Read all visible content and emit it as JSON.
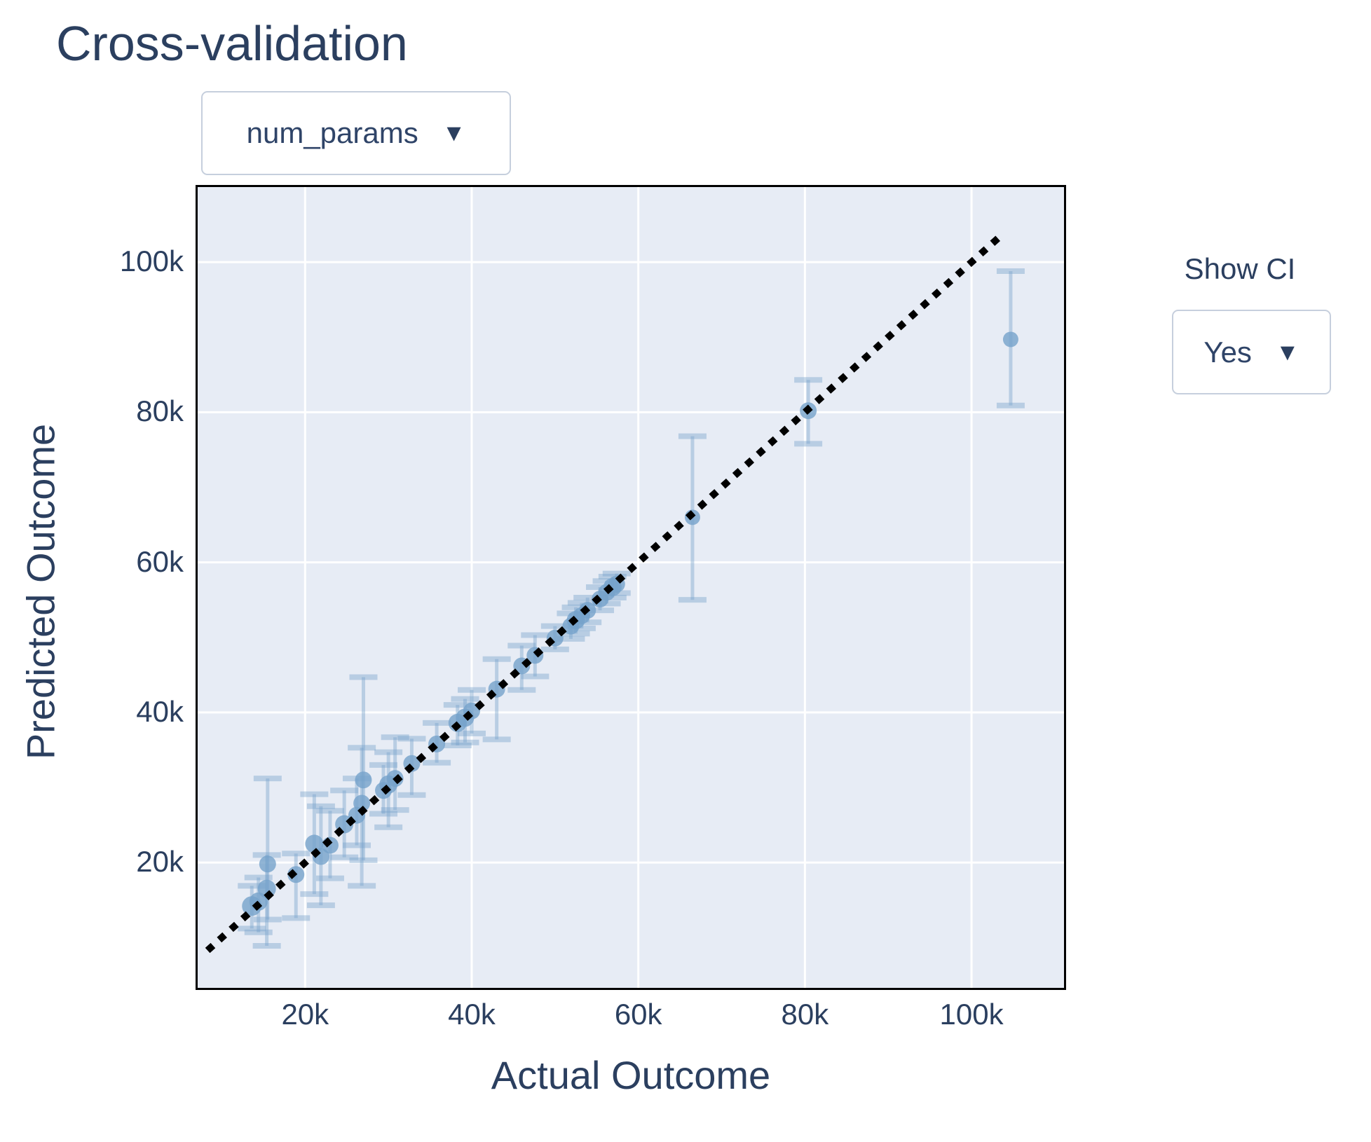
{
  "title": "Cross-validation",
  "controls": {
    "param_dropdown": {
      "value": "num_params",
      "caret": "▼"
    },
    "show_ci": {
      "label": "Show CI",
      "value": "Yes",
      "caret": "▼"
    }
  },
  "chart_data": {
    "type": "scatter",
    "title": "Cross-validation",
    "xlabel": "Actual Outcome",
    "ylabel": "Predicted Outcome",
    "xlim": [
      7100,
      111100
    ],
    "ylim": [
      3300,
      110000
    ],
    "grid": true,
    "xticks": {
      "values": [
        20000,
        40000,
        60000,
        80000,
        100000
      ],
      "labels": [
        "20k",
        "40k",
        "60k",
        "80k",
        "100k"
      ]
    },
    "yticks": {
      "values": [
        20000,
        40000,
        60000,
        80000,
        100000
      ],
      "labels": [
        "20k",
        "40k",
        "60k",
        "80k",
        "100k"
      ]
    },
    "identity_line": {
      "style": "dotted",
      "color": "#000000",
      "from": 8600,
      "to": 104200
    },
    "colors": {
      "plot_bg": "#e7ecf5",
      "grid": "#ffffff",
      "marker": "#76a3cb",
      "error_bar": "#76a3cb",
      "text": "#2b3f5f",
      "axis_border": "#000000"
    },
    "points": [
      {
        "x": 13600,
        "y": 14200,
        "lo": 11200,
        "hi": 16900,
        "r": 14
      },
      {
        "x": 14400,
        "y": 14800,
        "lo": 10700,
        "hi": 18000,
        "r": 13
      },
      {
        "x": 15400,
        "y": 16500,
        "lo": 8900,
        "hi": 21000,
        "r": 13
      },
      {
        "x": 15500,
        "y": 19800,
        "lo": 12400,
        "hi": 31200,
        "r": 12
      },
      {
        "x": 18900,
        "y": 18400,
        "lo": 12600,
        "hi": 21200,
        "r": 12
      },
      {
        "x": 21100,
        "y": 22500,
        "lo": 15800,
        "hi": 29100,
        "r": 13
      },
      {
        "x": 21900,
        "y": 20800,
        "lo": 14300,
        "hi": 27500,
        "r": 12
      },
      {
        "x": 23000,
        "y": 22300,
        "lo": 17900,
        "hi": 26900,
        "r": 12
      },
      {
        "x": 24700,
        "y": 25100,
        "lo": 20700,
        "hi": 29600,
        "r": 13
      },
      {
        "x": 26200,
        "y": 26300,
        "lo": 22300,
        "hi": 31200,
        "r": 12
      },
      {
        "x": 26800,
        "y": 27900,
        "lo": 16900,
        "hi": 35300,
        "r": 12
      },
      {
        "x": 27000,
        "y": 31000,
        "lo": 20300,
        "hi": 44700,
        "r": 12
      },
      {
        "x": 29400,
        "y": 29600,
        "lo": 26500,
        "hi": 33000,
        "r": 12
      },
      {
        "x": 30000,
        "y": 30400,
        "lo": 24700,
        "hi": 34700,
        "r": 13
      },
      {
        "x": 30800,
        "y": 31200,
        "lo": 27000,
        "hi": 36700,
        "r": 12
      },
      {
        "x": 32800,
        "y": 33200,
        "lo": 29000,
        "hi": 36500,
        "r": 12
      },
      {
        "x": 35800,
        "y": 35800,
        "lo": 33300,
        "hi": 38600,
        "r": 12
      },
      {
        "x": 38300,
        "y": 38600,
        "lo": 35600,
        "hi": 41000,
        "r": 13
      },
      {
        "x": 39200,
        "y": 39300,
        "lo": 36000,
        "hi": 41800,
        "r": 13
      },
      {
        "x": 40000,
        "y": 40200,
        "lo": 37200,
        "hi": 43000,
        "r": 12
      },
      {
        "x": 43000,
        "y": 43100,
        "lo": 36400,
        "hi": 47100,
        "r": 12
      },
      {
        "x": 46000,
        "y": 46200,
        "lo": 43000,
        "hi": 48900,
        "r": 12
      },
      {
        "x": 47600,
        "y": 47600,
        "lo": 44800,
        "hi": 50300,
        "r": 12
      },
      {
        "x": 50000,
        "y": 49900,
        "lo": 48400,
        "hi": 51500,
        "r": 12
      },
      {
        "x": 51900,
        "y": 51500,
        "lo": 49800,
        "hi": 53200,
        "r": 12
      },
      {
        "x": 52500,
        "y": 52300,
        "lo": 50500,
        "hi": 54000,
        "r": 13
      },
      {
        "x": 53200,
        "y": 52900,
        "lo": 51200,
        "hi": 54600,
        "r": 12
      },
      {
        "x": 53900,
        "y": 53600,
        "lo": 52000,
        "hi": 55300,
        "r": 12
      },
      {
        "x": 55400,
        "y": 55100,
        "lo": 53600,
        "hi": 56700,
        "r": 12
      },
      {
        "x": 56200,
        "y": 56000,
        "lo": 54500,
        "hi": 57500,
        "r": 12
      },
      {
        "x": 56900,
        "y": 56700,
        "lo": 55300,
        "hi": 58100,
        "r": 13
      },
      {
        "x": 57400,
        "y": 57100,
        "lo": 55900,
        "hi": 58500,
        "r": 12
      },
      {
        "x": 66500,
        "y": 66000,
        "lo": 55000,
        "hi": 76800,
        "r": 11
      },
      {
        "x": 80400,
        "y": 80200,
        "lo": 75800,
        "hi": 84300,
        "r": 12
      },
      {
        "x": 104700,
        "y": 89700,
        "lo": 80900,
        "hi": 98800,
        "r": 11
      }
    ]
  }
}
